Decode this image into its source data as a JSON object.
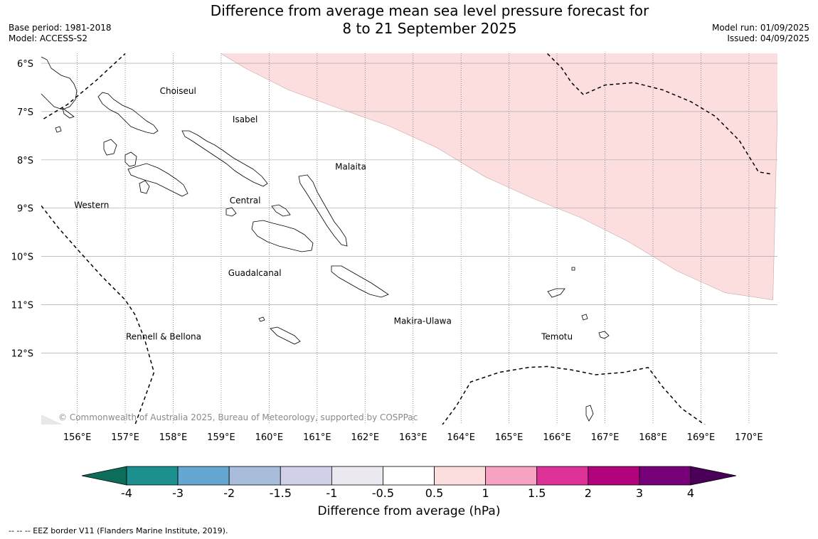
{
  "title": {
    "line1": "Difference from average mean sea level pressure forecast for",
    "line2": "8 to 21 September 2025"
  },
  "meta_left": {
    "base_period": "Base period: 1981-2018",
    "model": "Model: ACCESS-S2"
  },
  "meta_right": {
    "model_run": "Model run: 01/09/2025",
    "issued": "Issued: 04/09/2025"
  },
  "map": {
    "lon_range": [
      155.25,
      170.5
    ],
    "lat_range": [
      -13.5,
      -5.8
    ],
    "lon_ticks": [
      {
        "value": 156,
        "label": "156°E"
      },
      {
        "value": 157,
        "label": "157°E"
      },
      {
        "value": 158,
        "label": "158°E"
      },
      {
        "value": 159,
        "label": "159°E"
      },
      {
        "value": 160,
        "label": "160°E"
      },
      {
        "value": 161,
        "label": "161°E"
      },
      {
        "value": 162,
        "label": "162°E"
      },
      {
        "value": 163,
        "label": "163°E"
      },
      {
        "value": 164,
        "label": "164°E"
      },
      {
        "value": 165,
        "label": "165°E"
      },
      {
        "value": 166,
        "label": "166°E"
      },
      {
        "value": 167,
        "label": "167°E"
      },
      {
        "value": 168,
        "label": "168°E"
      },
      {
        "value": 169,
        "label": "169°E"
      },
      {
        "value": 170,
        "label": "170°E"
      }
    ],
    "lat_ticks": [
      {
        "value": -6,
        "label": "6°S"
      },
      {
        "value": -7,
        "label": "7°S"
      },
      {
        "value": -8,
        "label": "8°S"
      },
      {
        "value": -9,
        "label": "9°S"
      },
      {
        "value": -10,
        "label": "10°S"
      },
      {
        "value": -11,
        "label": "11°S"
      },
      {
        "value": -12,
        "label": "12°S"
      }
    ],
    "provinces": [
      {
        "name": "Choiseul",
        "lon": 158.1,
        "lat": -6.63
      },
      {
        "name": "Isabel",
        "lon": 159.5,
        "lat": -7.22
      },
      {
        "name": "Malaita",
        "lon": 161.7,
        "lat": -8.2
      },
      {
        "name": "Western",
        "lon": 156.3,
        "lat": -9.0
      },
      {
        "name": "Central",
        "lon": 159.5,
        "lat": -8.9
      },
      {
        "name": "Guadalcanal",
        "lon": 159.7,
        "lat": -10.4
      },
      {
        "name": "Makira-Ulawa",
        "lon": 163.2,
        "lat": -11.4
      },
      {
        "name": "Temotu",
        "lon": 166.0,
        "lat": -11.72
      },
      {
        "name": "Rennell & Bellona",
        "lon": 157.8,
        "lat": -11.72
      }
    ],
    "anomaly_region": {
      "category": "0.5 to 1",
      "color": "#fddede",
      "boundary": [
        [
          159.0,
          -5.8
        ],
        [
          159.5,
          -6.1
        ],
        [
          160.4,
          -6.55
        ],
        [
          161.5,
          -6.95
        ],
        [
          162.5,
          -7.3
        ],
        [
          163.5,
          -7.75
        ],
        [
          164.5,
          -8.35
        ],
        [
          165.5,
          -8.8
        ],
        [
          166.5,
          -9.2
        ],
        [
          167.5,
          -9.7
        ],
        [
          168.5,
          -10.3
        ],
        [
          169.5,
          -10.75
        ],
        [
          170.5,
          -10.9
        ]
      ]
    },
    "eez_lines": [
      [
        [
          155.3,
          -7.15
        ],
        [
          155.8,
          -6.85
        ],
        [
          156.4,
          -6.35
        ],
        [
          157.0,
          -5.8
        ]
      ],
      [
        [
          155.25,
          -8.95
        ],
        [
          155.6,
          -9.4
        ],
        [
          156.0,
          -9.85
        ],
        [
          156.5,
          -10.4
        ],
        [
          157.0,
          -10.9
        ],
        [
          157.2,
          -11.2
        ],
        [
          157.4,
          -11.7
        ],
        [
          157.6,
          -12.4
        ],
        [
          157.2,
          -13.5
        ]
      ],
      [
        [
          165.8,
          -5.8
        ],
        [
          166.1,
          -6.1
        ],
        [
          166.3,
          -6.4
        ],
        [
          166.55,
          -6.65
        ],
        [
          167.0,
          -6.45
        ],
        [
          167.6,
          -6.4
        ],
        [
          168.2,
          -6.55
        ],
        [
          168.8,
          -6.8
        ],
        [
          169.3,
          -7.1
        ],
        [
          169.8,
          -7.6
        ],
        [
          170.2,
          -8.25
        ],
        [
          170.5,
          -8.3
        ]
      ],
      [
        [
          163.6,
          -13.5
        ],
        [
          163.9,
          -13.1
        ],
        [
          164.2,
          -12.6
        ],
        [
          164.8,
          -12.4
        ],
        [
          165.4,
          -12.3
        ],
        [
          165.8,
          -12.28
        ],
        [
          166.3,
          -12.35
        ],
        [
          166.8,
          -12.45
        ],
        [
          167.4,
          -12.4
        ],
        [
          167.9,
          -12.3
        ],
        [
          168.2,
          -12.7
        ],
        [
          168.6,
          -13.15
        ],
        [
          169.1,
          -13.5
        ]
      ]
    ]
  },
  "colorbar": {
    "title": "Difference from average (hPa)",
    "labels": [
      "-4",
      "-3",
      "-2",
      "-1.5",
      "-1",
      "-0.5",
      "0.5",
      "1",
      "1.5",
      "2",
      "3",
      "4"
    ],
    "colors": [
      "#1c8f8f",
      "#64a8d2",
      "#a8bcdc",
      "#d0d0e8",
      "#ebe9ef",
      "#ffffff",
      "#fddede",
      "#f7a2c2",
      "#dd3399",
      "#b0037c",
      "#760078"
    ],
    "extend_low_color": "#0c6e5a",
    "extend_high_color": "#4a0059"
  },
  "copyright": "© Commonwealth of Australia 2025, Bureau of Meteorology, supported by COSPPac",
  "footnote": "--  --  -- EEZ border V11 (Flanders Marine Institute, 2019)."
}
